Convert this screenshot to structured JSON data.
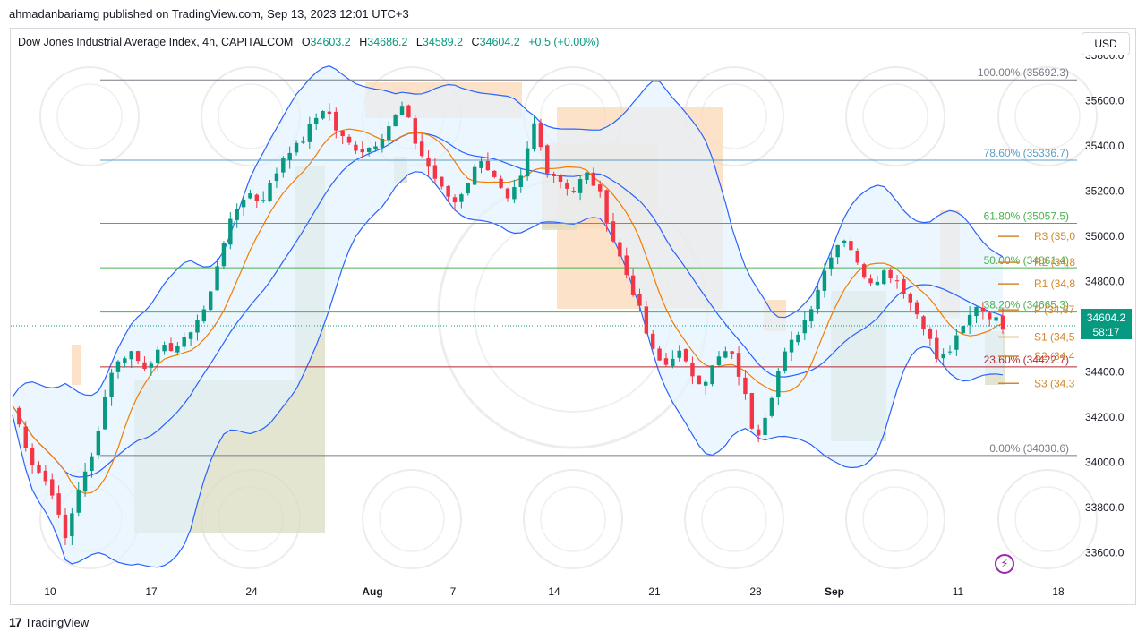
{
  "publisher_line": "ahmadanbariamg published on TradingView.com, Sep 13, 2023 12:01 UTC+3",
  "legend": {
    "symbol": "Dow Jones Industrial Average Index, 4h, CAPITALCOM",
    "o_label": "O",
    "o_value": "34603.2",
    "h_label": "H",
    "h_value": "34686.2",
    "l_label": "L",
    "l_value": "34589.2",
    "c_label": "C",
    "c_value": "34604.2",
    "change": "+0.5 (+0.00%)"
  },
  "currency_button": "USD",
  "price_badge": {
    "price": "34604.2",
    "countdown": "58:17"
  },
  "footer_brand": "TradingView",
  "colors": {
    "up": "#089981",
    "down": "#f23645",
    "bb_line": "#2962ff",
    "ma_line": "#f57c00",
    "bb_fill": "#e3f2fd",
    "zone_green": "#d9dcc0",
    "zone_orange": "#fcd8b8",
    "fib_grey": "#787b86",
    "fib_blue": "#5aa0c8",
    "fib_green": "#4caf50",
    "fib_red": "#b22833"
  },
  "chart_data": {
    "type": "candlestick",
    "title": "Dow Jones Industrial Average Index, 4h, CAPITALCOM",
    "y_ticks": [
      "35800.0",
      "35600.0",
      "35400.0",
      "35200.0",
      "35000.0",
      "34800.0",
      "34600.0",
      "34400.0",
      "34200.0",
      "34000.0",
      "33800.0",
      "33600.0"
    ],
    "ylim": [
      33480,
      35800
    ],
    "x_ticks": [
      {
        "label": "10",
        "bold": false
      },
      {
        "label": "17",
        "bold": false
      },
      {
        "label": "24",
        "bold": false
      },
      {
        "label": "Aug",
        "bold": true
      },
      {
        "label": "7",
        "bold": false
      },
      {
        "label": "14",
        "bold": false
      },
      {
        "label": "21",
        "bold": false
      },
      {
        "label": "28",
        "bold": false
      },
      {
        "label": "Sep",
        "bold": true
      },
      {
        "label": "11",
        "bold": false
      },
      {
        "label": "18",
        "bold": false
      }
    ],
    "fibonacci": [
      {
        "label": "100.00% (35692.3)",
        "level": 35692.3,
        "color": "fib_grey"
      },
      {
        "label": "78.60% (35336.7)",
        "level": 35336.7,
        "color": "fib_blue"
      },
      {
        "label": "61.80% (35057.5)",
        "level": 35057.5,
        "color": "fib_green"
      },
      {
        "label": "50.00% (34861.4)",
        "level": 34861.4,
        "color": "fib_green"
      },
      {
        "label": "38.20% (34665.3)",
        "level": 34665.3,
        "color": "fib_green"
      },
      {
        "label": "23.60% (34422.7)",
        "level": 34422.7,
        "color": "fib_red"
      },
      {
        "label": "0.00% (34030.6)",
        "level": 34030.6,
        "color": "fib_grey"
      }
    ],
    "pivots": [
      {
        "label": "R3 (35,0",
        "level": 35000
      },
      {
        "label": "R2 (34,8",
        "level": 34885
      },
      {
        "label": "R1 (34,8",
        "level": 34790
      },
      {
        "label": "P (34,67",
        "level": 34675
      },
      {
        "label": "S1 (34,5",
        "level": 34555
      },
      {
        "label": "S2 (34,4",
        "level": 34470
      },
      {
        "label": "S3 (34,3",
        "level": 34350
      }
    ],
    "last_price": 34604.2,
    "path": [
      [
        0,
        34250
      ],
      [
        3,
        34000
      ],
      [
        6,
        33880
      ],
      [
        8,
        33650
      ],
      [
        10,
        33880
      ],
      [
        12,
        34000
      ],
      [
        15,
        34400
      ],
      [
        18,
        34500
      ],
      [
        20,
        34420
      ],
      [
        23,
        34500
      ],
      [
        26,
        34520
      ],
      [
        28,
        34620
      ],
      [
        30,
        34700
      ],
      [
        32,
        34950
      ],
      [
        34,
        35100
      ],
      [
        36,
        35200
      ],
      [
        38,
        35150
      ],
      [
        40,
        35250
      ],
      [
        42,
        35380
      ],
      [
        44,
        35400
      ],
      [
        46,
        35500
      ],
      [
        48,
        35580
      ],
      [
        50,
        35450
      ],
      [
        52,
        35400
      ],
      [
        54,
        35380
      ],
      [
        56,
        35420
      ],
      [
        58,
        35500
      ],
      [
        60,
        35580
      ],
      [
        62,
        35400
      ],
      [
        64,
        35300
      ],
      [
        66,
        35200
      ],
      [
        68,
        35150
      ],
      [
        70,
        35250
      ],
      [
        72,
        35350
      ],
      [
        74,
        35250
      ],
      [
        76,
        35150
      ],
      [
        78,
        35250
      ],
      [
        80,
        35500
      ],
      [
        82,
        35300
      ],
      [
        84,
        35250
      ],
      [
        86,
        35200
      ],
      [
        88,
        35280
      ],
      [
        90,
        35200
      ],
      [
        92,
        35000
      ],
      [
        94,
        34850
      ],
      [
        96,
        34700
      ],
      [
        98,
        34500
      ],
      [
        100,
        34420
      ],
      [
        102,
        34500
      ],
      [
        104,
        34400
      ],
      [
        106,
        34350
      ],
      [
        108,
        34450
      ],
      [
        110,
        34500
      ],
      [
        112,
        34350
      ],
      [
        114,
        34100
      ],
      [
        116,
        34250
      ],
      [
        118,
        34450
      ],
      [
        120,
        34550
      ],
      [
        122,
        34650
      ],
      [
        124,
        34800
      ],
      [
        126,
        34950
      ],
      [
        128,
        35000
      ],
      [
        130,
        34850
      ],
      [
        132,
        34800
      ],
      [
        134,
        34850
      ],
      [
        136,
        34800
      ],
      [
        138,
        34700
      ],
      [
        140,
        34600
      ],
      [
        142,
        34450
      ],
      [
        144,
        34500
      ],
      [
        146,
        34600
      ],
      [
        148,
        34700
      ],
      [
        150,
        34650
      ],
      [
        152,
        34604
      ]
    ]
  }
}
